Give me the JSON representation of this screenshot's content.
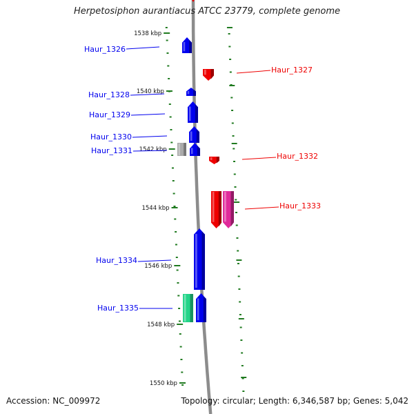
{
  "title": "Herpetosiphon aurantiacus ATCC 23779, complete genome",
  "footer": {
    "accession": "Accession: NC_009972",
    "summary": "Topology: circular; Length: 6,346,587 bp; Genes: 5,042"
  },
  "colors": {
    "backbone": "#8c8c8c",
    "tick": "#1f7a1f",
    "forward": "#0000ee",
    "reverse": "#ee0000",
    "rna": "#aaaaaa",
    "other_forward": "#22d488",
    "other_reverse": "#e02a9a"
  },
  "scale": {
    "unit": "kbp",
    "labels": [
      {
        "kbp": 1538,
        "text": "1538 kbp"
      },
      {
        "kbp": 1540,
        "text": "1540 kbp"
      },
      {
        "kbp": 1542,
        "text": "1542 kbp"
      },
      {
        "kbp": 1544,
        "text": "1544 kbp"
      },
      {
        "kbp": 1546,
        "text": "1546 kbp"
      },
      {
        "kbp": 1548,
        "text": "1548 kbp"
      },
      {
        "kbp": 1550,
        "text": "1550 kbp"
      }
    ]
  },
  "genes": [
    {
      "name": "Haur_1326",
      "strand": "+",
      "color": "#0000ee"
    },
    {
      "name": "Haur_1327",
      "strand": "-",
      "color": "#ee0000"
    },
    {
      "name": "Haur_1328",
      "strand": "+",
      "color": "#0000ee"
    },
    {
      "name": "Haur_1329",
      "strand": "+",
      "color": "#0000ee"
    },
    {
      "name": "Haur_1330",
      "strand": "+",
      "color": "#0000ee"
    },
    {
      "name": "Haur_1331",
      "strand": "+",
      "color": "#0000ee"
    },
    {
      "name": "Haur_1332",
      "strand": "-",
      "color": "#ee0000"
    },
    {
      "name": "Haur_1333",
      "strand": "-",
      "color": "#ee0000"
    },
    {
      "name": "Haur_1334",
      "strand": "+",
      "color": "#0000ee"
    },
    {
      "name": "Haur_1335",
      "strand": "+",
      "color": "#0000ee"
    }
  ],
  "extra_features": [
    {
      "strand": "+",
      "color": "#aaaaaa"
    },
    {
      "strand": "-",
      "color": "#e02a9a"
    },
    {
      "strand": "+",
      "color": "#22d488"
    }
  ]
}
